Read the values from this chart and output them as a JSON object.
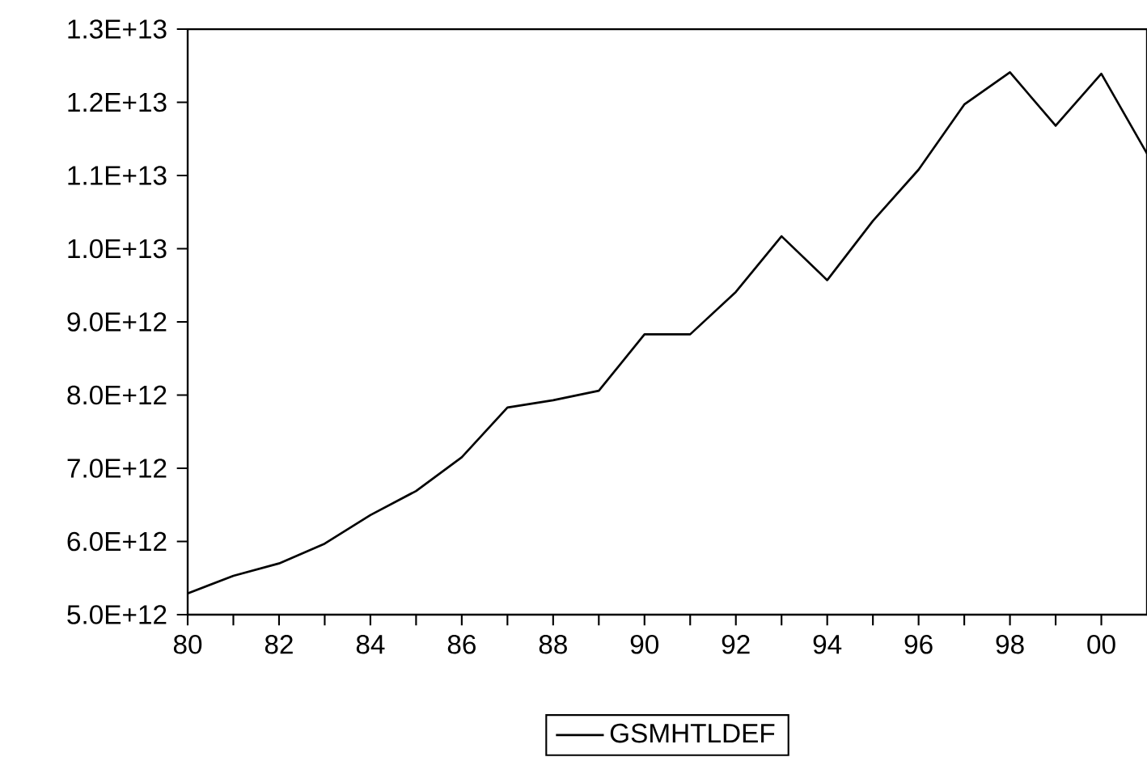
{
  "chart_data": {
    "type": "line",
    "x": [
      1980,
      1981,
      1982,
      1983,
      1984,
      1985,
      1986,
      1987,
      1988,
      1989,
      1990,
      1991,
      1992,
      1993,
      1994,
      1995,
      1996,
      1997,
      1998,
      1999,
      2000,
      2001
    ],
    "series": [
      {
        "name": "GSMHTLDEF",
        "color": "#000000",
        "values": [
          5290000000000.0,
          5530000000000.0,
          5700000000000.0,
          5970000000000.0,
          6360000000000.0,
          6690000000000.0,
          7150000000000.0,
          7830000000000.0,
          7930000000000.0,
          8060000000000.0,
          8830000000000.0,
          8830000000000.0,
          9410000000000.0,
          10170000000000.0,
          9570000000000.0,
          10380000000000.0,
          11080000000000.0,
          11970000000000.0,
          12410000000000.0,
          11680000000000.0,
          12390000000000.0,
          11300000000000.0
        ]
      }
    ],
    "xlim": [
      1980,
      2001
    ],
    "xticks": [
      {
        "value": 1980,
        "label": "80"
      },
      {
        "value": 1981,
        "label": null
      },
      {
        "value": 1982,
        "label": "82"
      },
      {
        "value": 1983,
        "label": null
      },
      {
        "value": 1984,
        "label": "84"
      },
      {
        "value": 1985,
        "label": null
      },
      {
        "value": 1986,
        "label": "86"
      },
      {
        "value": 1987,
        "label": null
      },
      {
        "value": 1988,
        "label": "88"
      },
      {
        "value": 1989,
        "label": null
      },
      {
        "value": 1990,
        "label": "90"
      },
      {
        "value": 1991,
        "label": null
      },
      {
        "value": 1992,
        "label": "92"
      },
      {
        "value": 1993,
        "label": null
      },
      {
        "value": 1994,
        "label": "94"
      },
      {
        "value": 1995,
        "label": null
      },
      {
        "value": 1996,
        "label": "96"
      },
      {
        "value": 1997,
        "label": null
      },
      {
        "value": 1998,
        "label": "98"
      },
      {
        "value": 1999,
        "label": null
      },
      {
        "value": 2000,
        "label": "00"
      }
    ],
    "ylim": [
      5000000000000.0,
      13000000000000.0
    ],
    "yticks": [
      {
        "value": 5000000000000.0,
        "label": "5.0E+12"
      },
      {
        "value": 6000000000000.0,
        "label": "6.0E+12"
      },
      {
        "value": 7000000000000.0,
        "label": "7.0E+12"
      },
      {
        "value": 8000000000000.0,
        "label": "8.0E+12"
      },
      {
        "value": 9000000000000.0,
        "label": "9.0E+12"
      },
      {
        "value": 10000000000000.0,
        "label": "1.0E+13"
      },
      {
        "value": 11000000000000.0,
        "label": "1.1E+13"
      },
      {
        "value": 12000000000000.0,
        "label": "1.2E+13"
      },
      {
        "value": 13000000000000.0,
        "label": "1.3E+13"
      }
    ],
    "grid": false,
    "legend": "bottom",
    "marker": "none",
    "line_style": "solid"
  }
}
